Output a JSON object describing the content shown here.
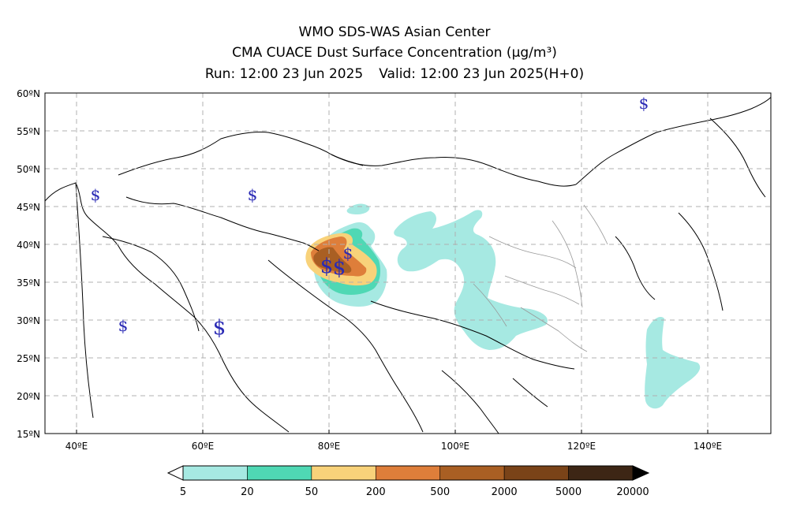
{
  "title": {
    "line1": "WMO SDS-WAS Asian Center",
    "line2": "CMA CUACE Dust Surface Concentration (μg/m³)",
    "run": "Run: 12:00 23 Jun 2025",
    "valid": "Valid: 12:00 23 Jun 2025(H+0)"
  },
  "map": {
    "lon_range": [
      35,
      150
    ],
    "lat_range": [
      15,
      60
    ],
    "x_ticks": [
      "40ºE",
      "60ºE",
      "80ºE",
      "100ºE",
      "120ºE",
      "140ºE"
    ],
    "y_ticks": [
      "60ºN",
      "55ºN",
      "50ºN",
      "45ºN",
      "40ºN",
      "35ºN",
      "30ºN",
      "25ºN",
      "20ºN",
      "15ºN"
    ],
    "grid": true,
    "grid_style": "dashed"
  },
  "colorbar": {
    "levels": [
      "5",
      "20",
      "50",
      "200",
      "500",
      "2000",
      "5000",
      "20000"
    ],
    "colors": [
      "#a6e9e2",
      "#4fd8b4",
      "#f8d27a",
      "#de7e3a",
      "#a95f23",
      "#7a4318",
      "#3d2615"
    ]
  },
  "dust_colors": {
    "c5": "#a6e9e2",
    "c20": "#4fd8b4",
    "c50": "#f8d27a",
    "c200": "#de7e3a",
    "c500": "#a95f23"
  },
  "weather_symbol": "$"
}
